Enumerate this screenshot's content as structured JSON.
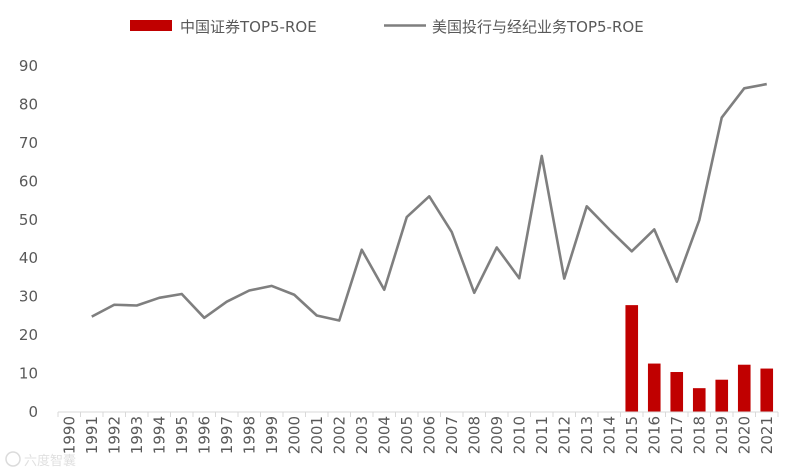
{
  "chart_data": {
    "type": "bar+line",
    "title": "",
    "xlabel": "",
    "ylabel": "",
    "ylim": [
      0,
      90
    ],
    "yticks": [
      0,
      10,
      20,
      30,
      40,
      50,
      60,
      70,
      80,
      90
    ],
    "grid": false,
    "legend_position": "top",
    "categories": [
      "1990",
      "1991",
      "1992",
      "1993",
      "1994",
      "1995",
      "1996",
      "1997",
      "1998",
      "1999",
      "2000",
      "2001",
      "2002",
      "2003",
      "2004",
      "2005",
      "2006",
      "2007",
      "2008",
      "2009",
      "2010",
      "2011",
      "2012",
      "2013",
      "2014",
      "2015",
      "2016",
      "2017",
      "2018",
      "2019",
      "2020",
      "2021"
    ],
    "series": [
      {
        "name": "中国证券TOP5-ROE",
        "type": "bar",
        "color": "#c00000",
        "values": [
          null,
          null,
          null,
          null,
          null,
          null,
          null,
          null,
          null,
          null,
          null,
          null,
          null,
          null,
          null,
          null,
          null,
          null,
          null,
          null,
          null,
          null,
          null,
          null,
          null,
          27.8,
          12.6,
          10.4,
          6.2,
          8.4,
          12.3,
          11.3
        ]
      },
      {
        "name": "美国投行与经纪业务TOP5-ROE",
        "type": "line",
        "color": "#7f7f7f",
        "values": [
          null,
          24.8,
          27.9,
          27.7,
          29.7,
          30.7,
          24.5,
          28.7,
          31.6,
          32.8,
          30.5,
          25.1,
          23.8,
          42.2,
          31.8,
          50.7,
          56.1,
          46.8,
          31.0,
          42.8,
          34.8,
          66.6,
          34.7,
          53.5,
          47.5,
          41.8,
          47.5,
          33.9,
          49.9,
          76.6,
          84.2,
          85.3
        ]
      }
    ]
  },
  "watermark": "六度智囊"
}
